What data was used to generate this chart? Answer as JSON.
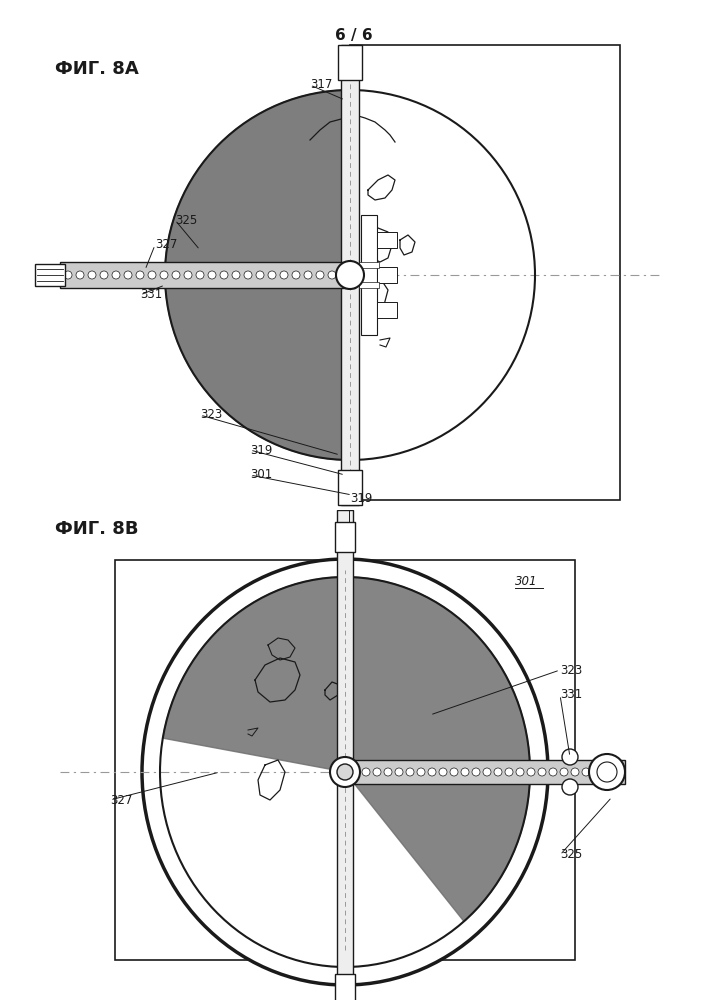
{
  "page_label": "6 / 6",
  "fig8a_label": "ФИГ. 8А",
  "fig8b_label": "ФИГ. 8В",
  "bg_color": "#ffffff",
  "line_color": "#1a1a1a",
  "dark_fill": "#707070",
  "medium_gray": "#999999",
  "pole_fill": "#eeeeee",
  "band_fill": "#cccccc"
}
